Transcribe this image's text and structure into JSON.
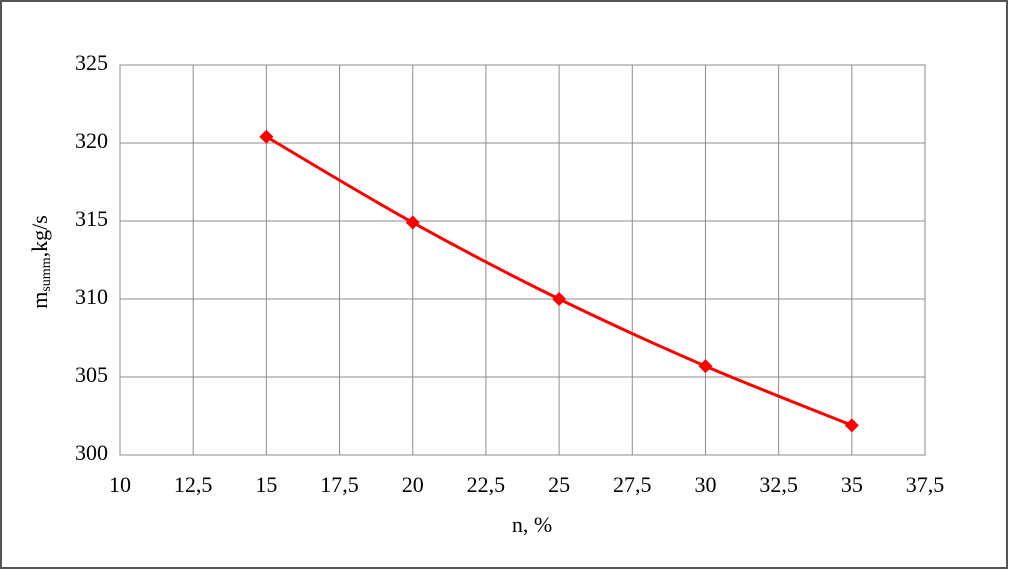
{
  "chart_data": {
    "type": "line",
    "ylabel": {
      "main": "m",
      "sub": "summ",
      "rest": ",kg/s"
    },
    "xlabel": "n, %",
    "x": [
      15,
      20,
      25,
      30,
      35
    ],
    "series": [
      {
        "color": "#ff0000",
        "values": [
          320.4,
          314.9,
          310.0,
          305.7,
          301.9
        ]
      }
    ],
    "xlim": [
      10,
      37.5
    ],
    "xticks": [
      10,
      {
        "value": 12.5,
        "label": "12,5"
      },
      15,
      {
        "value": 17.5,
        "label": "17,5"
      },
      20,
      {
        "value": 22.5,
        "label": "22,5"
      },
      25,
      {
        "value": 27.5,
        "label": "27,5"
      },
      30,
      {
        "value": 32.5,
        "label": "32,5"
      },
      35,
      {
        "value": 37.5,
        "label": "37,5"
      }
    ],
    "ylim": [
      300,
      325
    ],
    "yticks": [
      300,
      305,
      310,
      315,
      320,
      325
    ],
    "grid": true
  }
}
